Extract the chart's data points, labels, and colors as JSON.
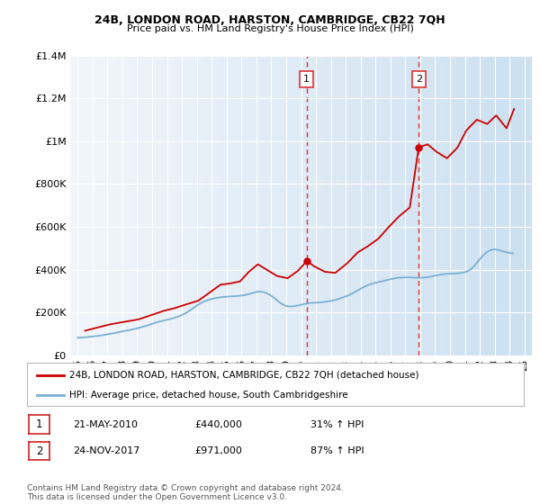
{
  "title": "24B, LONDON ROAD, HARSTON, CAMBRIDGE, CB22 7QH",
  "subtitle": "Price paid vs. HM Land Registry's House Price Index (HPI)",
  "legend_label_red": "24B, LONDON ROAD, HARSTON, CAMBRIDGE, CB22 7QH (detached house)",
  "legend_label_blue": "HPI: Average price, detached house, South Cambridgeshire",
  "footnote": "Contains HM Land Registry data © Crown copyright and database right 2024.\nThis data is licensed under the Open Government Licence v3.0.",
  "sale1_label": "1",
  "sale1_date": "21-MAY-2010",
  "sale1_price": "£440,000",
  "sale1_hpi": "31% ↑ HPI",
  "sale2_label": "2",
  "sale2_date": "24-NOV-2017",
  "sale2_price": "£971,000",
  "sale2_hpi": "87% ↑ HPI",
  "sale1_x": 2010.38,
  "sale1_y": 440000,
  "sale2_x": 2017.9,
  "sale2_y": 971000,
  "ylim": [
    0,
    1400000
  ],
  "xlim": [
    1994.5,
    2025.5
  ],
  "red_color": "#cc0000",
  "blue_color": "#7ab0d4",
  "bg_color_left": "#f0f4fa",
  "bg_color_right": "#d8e8f5",
  "vline_color": "#dd3333",
  "yticks": [
    0,
    200000,
    400000,
    600000,
    800000,
    1000000,
    1200000,
    1400000
  ],
  "ytick_labels": [
    "£0",
    "£200K",
    "£400K",
    "£600K",
    "£800K",
    "£1M",
    "£1.2M",
    "£1.4M"
  ],
  "xticks": [
    1995,
    1996,
    1997,
    1998,
    1999,
    2000,
    2001,
    2002,
    2003,
    2004,
    2005,
    2006,
    2007,
    2008,
    2009,
    2010,
    2011,
    2012,
    2013,
    2014,
    2015,
    2016,
    2017,
    2018,
    2019,
    2020,
    2021,
    2022,
    2023,
    2024,
    2025
  ],
  "xtick_labels": [
    "95",
    "96",
    "97",
    "98",
    "99",
    "00",
    "01",
    "02",
    "03",
    "04",
    "05",
    "06",
    "07",
    "08",
    "09",
    "10",
    "11",
    "12",
    "13",
    "14",
    "15",
    "16",
    "17",
    "18",
    "19",
    "20",
    "21",
    "22",
    "23",
    "24",
    "25"
  ],
  "hpi_x": [
    1995,
    1995.25,
    1995.5,
    1995.75,
    1996,
    1996.25,
    1996.5,
    1996.75,
    1997,
    1997.25,
    1997.5,
    1997.75,
    1998,
    1998.25,
    1998.5,
    1998.75,
    1999,
    1999.25,
    1999.5,
    1999.75,
    2000,
    2000.25,
    2000.5,
    2000.75,
    2001,
    2001.25,
    2001.5,
    2001.75,
    2002,
    2002.25,
    2002.5,
    2002.75,
    2003,
    2003.25,
    2003.5,
    2003.75,
    2004,
    2004.25,
    2004.5,
    2004.75,
    2005,
    2005.25,
    2005.5,
    2005.75,
    2006,
    2006.25,
    2006.5,
    2006.75,
    2007,
    2007.25,
    2007.5,
    2007.75,
    2008,
    2008.25,
    2008.5,
    2008.75,
    2009,
    2009.25,
    2009.5,
    2009.75,
    2010,
    2010.25,
    2010.5,
    2010.75,
    2011,
    2011.25,
    2011.5,
    2011.75,
    2012,
    2012.25,
    2012.5,
    2012.75,
    2013,
    2013.25,
    2013.5,
    2013.75,
    2014,
    2014.25,
    2014.5,
    2014.75,
    2015,
    2015.25,
    2015.5,
    2015.75,
    2016,
    2016.25,
    2016.5,
    2016.75,
    2017,
    2017.25,
    2017.5,
    2017.75,
    2018,
    2018.25,
    2018.5,
    2018.75,
    2019,
    2019.25,
    2019.5,
    2019.75,
    2020,
    2020.25,
    2020.5,
    2020.75,
    2021,
    2021.25,
    2021.5,
    2021.75,
    2022,
    2022.25,
    2022.5,
    2022.75,
    2023,
    2023.25,
    2023.5,
    2023.75,
    2024,
    2024.25
  ],
  "hpi_y": [
    82000,
    83000,
    84000,
    86000,
    88000,
    90000,
    92000,
    95000,
    98000,
    101000,
    104000,
    108000,
    112000,
    115000,
    118000,
    122000,
    126000,
    131000,
    136000,
    141000,
    147000,
    153000,
    158000,
    162000,
    166000,
    170000,
    175000,
    181000,
    188000,
    197000,
    208000,
    220000,
    232000,
    243000,
    252000,
    258000,
    263000,
    267000,
    270000,
    272000,
    274000,
    275000,
    276000,
    277000,
    279000,
    282000,
    286000,
    291000,
    296000,
    298000,
    295000,
    288000,
    278000,
    265000,
    250000,
    238000,
    230000,
    228000,
    229000,
    232000,
    236000,
    240000,
    243000,
    245000,
    246000,
    247000,
    249000,
    251000,
    254000,
    258000,
    263000,
    269000,
    275000,
    282000,
    291000,
    301000,
    311000,
    320000,
    328000,
    334000,
    339000,
    343000,
    347000,
    351000,
    355000,
    359000,
    362000,
    363000,
    364000,
    364000,
    363000,
    362000,
    362000,
    363000,
    365000,
    368000,
    372000,
    375000,
    378000,
    380000,
    381000,
    382000,
    383000,
    385000,
    388000,
    395000,
    408000,
    427000,
    449000,
    468000,
    483000,
    492000,
    495000,
    492000,
    487000,
    482000,
    478000,
    476000
  ],
  "price_x": [
    1995.5,
    1997.2,
    1999.1,
    2000.8,
    2001.5,
    2002.3,
    2003.1,
    2003.9,
    2004.6,
    2005.2,
    2005.9,
    2006.5,
    2007.1,
    2007.8,
    2008.4,
    2009.1,
    2009.8,
    2010.38,
    2010.9,
    2011.6,
    2012.3,
    2013.1,
    2013.8,
    2014.5,
    2015.2,
    2015.9,
    2016.6,
    2017.3,
    2017.9,
    2018.5,
    2019.1,
    2019.8,
    2020.5,
    2021.1,
    2021.8,
    2022.5,
    2023.1,
    2023.8,
    2024.3
  ],
  "price_y": [
    115000,
    145000,
    168000,
    208000,
    220000,
    238000,
    255000,
    295000,
    330000,
    335000,
    345000,
    390000,
    425000,
    395000,
    370000,
    360000,
    395000,
    440000,
    415000,
    390000,
    385000,
    430000,
    480000,
    510000,
    545000,
    600000,
    650000,
    690000,
    971000,
    985000,
    950000,
    920000,
    970000,
    1050000,
    1100000,
    1080000,
    1120000,
    1060000,
    1150000
  ]
}
